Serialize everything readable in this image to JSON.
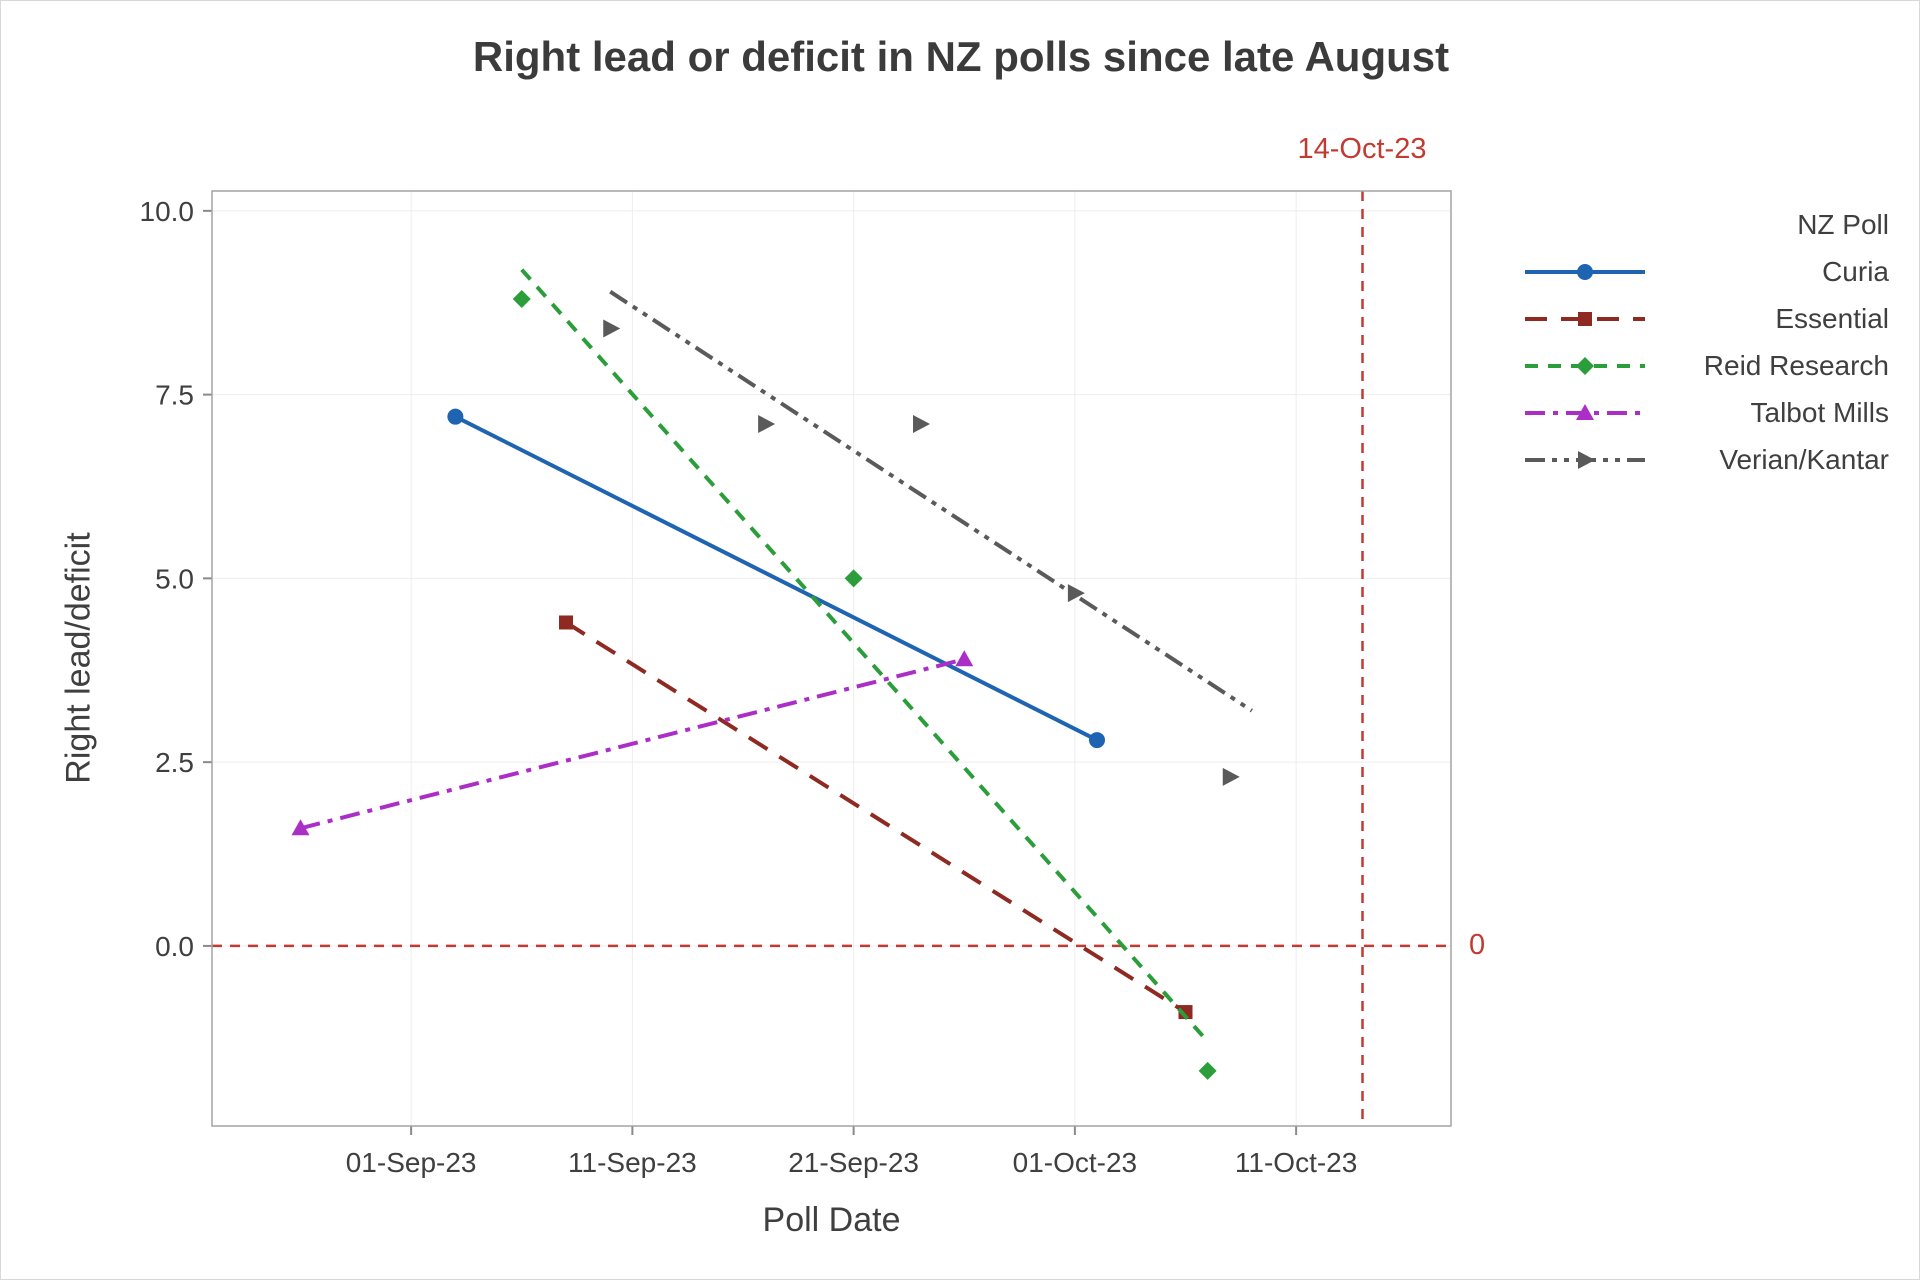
{
  "chart_data": {
    "type": "line",
    "title": "Right lead or deficit in NZ polls since late August",
    "xlabel": "Poll Date",
    "ylabel": "Right lead/deficit",
    "legend_title": "NZ Poll",
    "legend_position": "right-outside",
    "grid": true,
    "x_domain": [
      "2023-08-23",
      "2023-10-18"
    ],
    "y_domain": [
      -2.45,
      10.27
    ],
    "x_ticks": [
      {
        "label": "01-Sep-23",
        "date": "2023-09-01"
      },
      {
        "label": "11-Sep-23",
        "date": "2023-09-11"
      },
      {
        "label": "21-Sep-23",
        "date": "2023-09-21"
      },
      {
        "label": "01-Oct-23",
        "date": "2023-10-01"
      },
      {
        "label": "11-Oct-23",
        "date": "2023-10-11"
      }
    ],
    "y_ticks": [
      "0.0",
      "2.5",
      "5.0",
      "7.5",
      "10.0"
    ],
    "reference_lines": {
      "color": "#c23b32",
      "vertical": {
        "date": "2023-10-14",
        "label": "14-Oct-23"
      },
      "horizontal": {
        "y": 0,
        "label": "0"
      }
    },
    "series": [
      {
        "name": "Curia",
        "color": "#1e64b2",
        "marker": "circle",
        "line_style": "solid",
        "points": [
          {
            "date": "2023-09-03",
            "y": 7.2
          },
          {
            "date": "2023-10-02",
            "y": 2.8
          }
        ],
        "trend": [
          {
            "date": "2023-09-03",
            "y": 7.2
          },
          {
            "date": "2023-10-02",
            "y": 2.8
          }
        ]
      },
      {
        "name": "Essential",
        "color": "#8e2a21",
        "marker": "square",
        "line_style": "dash",
        "points": [
          {
            "date": "2023-09-08",
            "y": 4.4
          },
          {
            "date": "2023-10-06",
            "y": -0.9
          }
        ],
        "trend": [
          {
            "date": "2023-09-08",
            "y": 4.4
          },
          {
            "date": "2023-10-06",
            "y": -0.9
          }
        ]
      },
      {
        "name": "Reid Research",
        "color": "#2b9e3b",
        "marker": "diamond",
        "line_style": "dash-medium",
        "points": [
          {
            "date": "2023-09-06",
            "y": 8.8
          },
          {
            "date": "2023-09-21",
            "y": 5.0
          },
          {
            "date": "2023-10-07",
            "y": -1.7
          }
        ],
        "trend": [
          {
            "date": "2023-09-06",
            "y": 9.2
          },
          {
            "date": "2023-10-07",
            "y": -1.3
          }
        ]
      },
      {
        "name": "Talbot Mills",
        "color": "#ab2fc6",
        "marker": "triangle-up",
        "line_style": "dash-dot",
        "points": [
          {
            "date": "2023-08-27",
            "y": 1.6
          },
          {
            "date": "2023-09-26",
            "y": 3.9
          }
        ],
        "trend": [
          {
            "date": "2023-08-27",
            "y": 1.6
          },
          {
            "date": "2023-09-26",
            "y": 3.9
          }
        ]
      },
      {
        "name": "Verian/Kantar",
        "color": "#5a5a5a",
        "marker": "triangle-right",
        "line_style": "dash-dot-dot",
        "points": [
          {
            "date": "2023-09-10",
            "y": 8.4
          },
          {
            "date": "2023-09-17",
            "y": 7.1
          },
          {
            "date": "2023-09-24",
            "y": 7.1
          },
          {
            "date": "2023-10-01",
            "y": 4.8
          },
          {
            "date": "2023-10-08",
            "y": 2.3
          }
        ],
        "trend": [
          {
            "date": "2023-09-10",
            "y": 8.9
          },
          {
            "date": "2023-10-09",
            "y": 3.2
          }
        ]
      }
    ]
  }
}
